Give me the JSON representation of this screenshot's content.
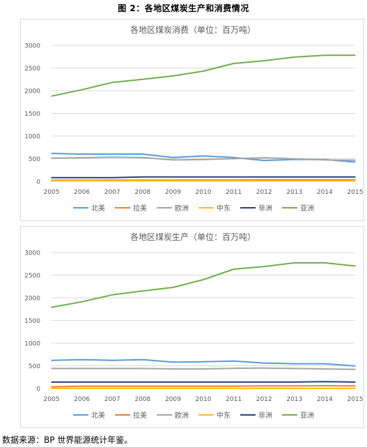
{
  "figure_title": "图 2：各地区煤炭生产和消费情况",
  "source_note": "数据来源：BP 世界能源统计年鉴。",
  "chart_data": [
    {
      "type": "line",
      "title": "各地区煤炭消费（单位：百万吨）",
      "xlabel": "",
      "ylabel": "",
      "categories": [
        "2005",
        "2006",
        "2007",
        "2008",
        "2009",
        "2010",
        "2011",
        "2012",
        "2013",
        "2014",
        "2015"
      ],
      "ylim": [
        0,
        3000
      ],
      "yticks": [
        0,
        500,
        1000,
        1500,
        2000,
        2500,
        3000
      ],
      "grid": true,
      "legend": "bottom",
      "series": [
        {
          "name": "北美",
          "color": "#5b9bd5",
          "values": [
            615,
            600,
            600,
            600,
            525,
            560,
            525,
            460,
            480,
            480,
            425
          ]
        },
        {
          "name": "拉美",
          "color": "#ed7d31",
          "values": [
            25,
            25,
            28,
            28,
            28,
            30,
            30,
            32,
            33,
            33,
            33
          ]
        },
        {
          "name": "欧洲",
          "color": "#a5a5a5",
          "values": [
            510,
            520,
            535,
            525,
            470,
            480,
            500,
            520,
            495,
            470,
            465
          ]
        },
        {
          "name": "中东",
          "color": "#ffc000",
          "values": [
            10,
            10,
            10,
            10,
            10,
            10,
            10,
            10,
            10,
            10,
            10
          ]
        },
        {
          "name": "非洲",
          "color": "#264478",
          "values": [
            80,
            80,
            80,
            95,
            95,
            95,
            95,
            95,
            95,
            95,
            95
          ]
        },
        {
          "name": "亚洲",
          "color": "#70ad47",
          "values": [
            1880,
            2020,
            2180,
            2250,
            2325,
            2430,
            2600,
            2660,
            2740,
            2780,
            2780
          ]
        }
      ]
    },
    {
      "type": "line",
      "title": "各地区煤炭生产（单位：百万吨）",
      "xlabel": "",
      "ylabel": "",
      "categories": [
        "2005",
        "2006",
        "2007",
        "2008",
        "2009",
        "2010",
        "2011",
        "2012",
        "2013",
        "2014",
        "2015"
      ],
      "ylim": [
        0,
        3000
      ],
      "yticks": [
        0,
        500,
        1000,
        1500,
        2000,
        2500,
        3000
      ],
      "grid": true,
      "legend": "bottom",
      "series": [
        {
          "name": "北美",
          "color": "#5b9bd5",
          "values": [
            620,
            635,
            620,
            635,
            580,
            590,
            605,
            560,
            545,
            545,
            495
          ]
        },
        {
          "name": "拉美",
          "color": "#ed7d31",
          "values": [
            35,
            50,
            50,
            50,
            50,
            50,
            50,
            55,
            55,
            60,
            55
          ]
        },
        {
          "name": "欧洲",
          "color": "#a5a5a5",
          "values": [
            440,
            440,
            440,
            440,
            430,
            430,
            445,
            450,
            440,
            430,
            420
          ]
        },
        {
          "name": "中东",
          "color": "#ffc000",
          "values": [
            1,
            1,
            1,
            1,
            1,
            1,
            1,
            1,
            1,
            1,
            1
          ]
        },
        {
          "name": "非洲",
          "color": "#264478",
          "values": [
            140,
            140,
            140,
            140,
            140,
            140,
            140,
            140,
            140,
            150,
            140
          ]
        },
        {
          "name": "亚洲",
          "color": "#70ad47",
          "values": [
            1790,
            1910,
            2065,
            2150,
            2230,
            2400,
            2630,
            2690,
            2770,
            2770,
            2700
          ]
        }
      ]
    }
  ]
}
